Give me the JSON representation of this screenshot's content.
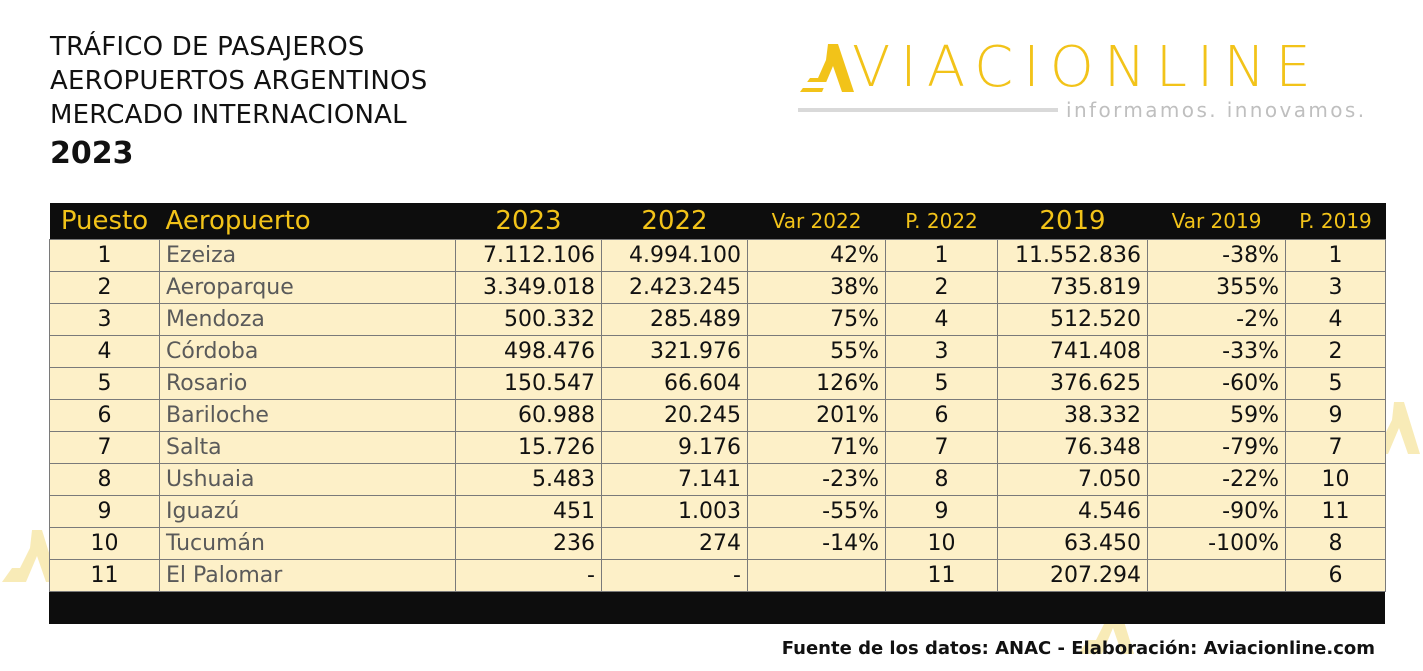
{
  "title": {
    "line1": "TRÁFICO DE PASAJEROS",
    "line2": "AEROPUERTOS ARGENTINOS",
    "line3": "MERCADO INTERNACIONAL",
    "year": "2023"
  },
  "logo": {
    "wordmark": "VIACIONLINE",
    "tagline": "informamos. innovamos.",
    "color": "#f2c319"
  },
  "table": {
    "headers": [
      "Puesto",
      "Aeropuerto",
      "2023",
      "2022",
      "Var 2022",
      "P. 2022",
      "2019",
      "Var 2019",
      "P. 2019"
    ],
    "rows": [
      [
        "1",
        "Ezeiza",
        "7.112.106",
        "4.994.100",
        "42%",
        "1",
        "11.552.836",
        "-38%",
        "1"
      ],
      [
        "2",
        "Aeroparque",
        "3.349.018",
        "2.423.245",
        "38%",
        "2",
        "735.819",
        "355%",
        "3"
      ],
      [
        "3",
        "Mendoza",
        "500.332",
        "285.489",
        "75%",
        "4",
        "512.520",
        "-2%",
        "4"
      ],
      [
        "4",
        "Córdoba",
        "498.476",
        "321.976",
        "55%",
        "3",
        "741.408",
        "-33%",
        "2"
      ],
      [
        "5",
        "Rosario",
        "150.547",
        "66.604",
        "126%",
        "5",
        "376.625",
        "-60%",
        "5"
      ],
      [
        "6",
        "Bariloche",
        "60.988",
        "20.245",
        "201%",
        "6",
        "38.332",
        "59%",
        "9"
      ],
      [
        "7",
        "Salta",
        "15.726",
        "9.176",
        "71%",
        "7",
        "76.348",
        "-79%",
        "7"
      ],
      [
        "8",
        "Ushuaia",
        "5.483",
        "7.141",
        "-23%",
        "8",
        "7.050",
        "-22%",
        "10"
      ],
      [
        "9",
        "Iguazú",
        "451",
        "1.003",
        "-55%",
        "9",
        "4.546",
        "-90%",
        "11"
      ],
      [
        "10",
        "Tucumán",
        "236",
        "274",
        "-14%",
        "10",
        "63.450",
        "-100%",
        "8"
      ],
      [
        "11",
        "El Palomar",
        "-",
        "-",
        "",
        "11",
        "207.294",
        "",
        "6"
      ]
    ]
  },
  "source": "Fuente de los datos: ANAC - Elaboración: Aviacionline.com",
  "colors": {
    "accent": "#f2c319",
    "header_bg": "#0d0d0d",
    "row_bg": "#fdf0c8"
  }
}
